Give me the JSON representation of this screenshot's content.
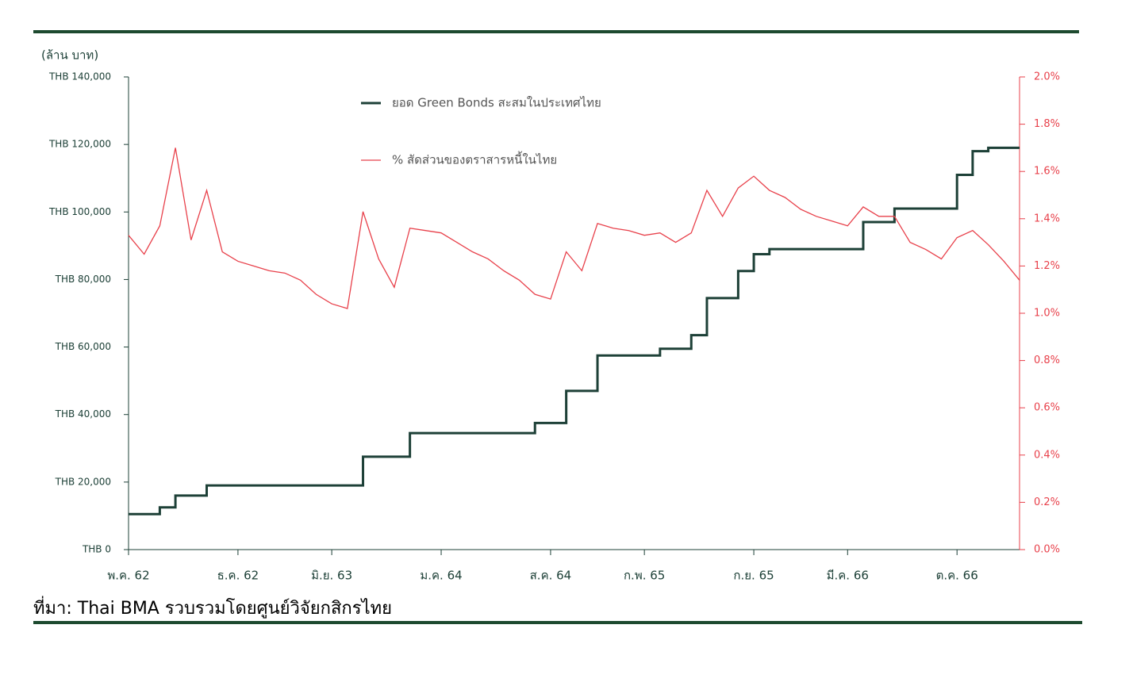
{
  "chart_data": {
    "type": "line",
    "y_axis_label": "(ล้าน บาท)",
    "source": "ที่มา: Thai BMA รวบรวมโดยศูนย์วิจัยกสิกรไทย",
    "categories": [
      "พ.ค. 62",
      null,
      null,
      null,
      null,
      null,
      null,
      "ธ.ค. 62",
      null,
      null,
      null,
      null,
      null,
      "มิ.ย. 63",
      null,
      null,
      null,
      null,
      null,
      null,
      "ม.ค. 64",
      null,
      null,
      null,
      null,
      null,
      null,
      "ส.ค. 64",
      null,
      null,
      null,
      null,
      null,
      "ก.พ. 65",
      null,
      null,
      null,
      null,
      null,
      null,
      "ก.ย. 65",
      null,
      null,
      null,
      null,
      null,
      "มี.ค. 66",
      null,
      null,
      null,
      null,
      null,
      null,
      "ต.ค. 66",
      null,
      null,
      null,
      null
    ],
    "series": [
      {
        "name": "ยอด Green Bonds สะสมในประเทศไทย",
        "color": "#1d4037",
        "axis": "y",
        "values": [
          10500,
          10500,
          12500,
          16000,
          16000,
          19000,
          19000,
          19000,
          19000,
          19000,
          19000,
          19000,
          19000,
          19000,
          19000,
          27500,
          27500,
          27500,
          34500,
          34500,
          34500,
          34500,
          34500,
          34500,
          34500,
          34500,
          37500,
          37500,
          47000,
          47000,
          57500,
          57500,
          57500,
          57500,
          59500,
          59500,
          63500,
          74500,
          74500,
          82500,
          87500,
          89000,
          89000,
          89000,
          89000,
          89000,
          89000,
          97000,
          97000,
          101000,
          101000,
          101000,
          101000,
          111000,
          118000,
          119000,
          119000,
          119000
        ]
      },
      {
        "name": "% สัดส่วนของตราสารหนี้ในไทย",
        "color": "#e8414b",
        "axis": "y2",
        "values": [
          1.33,
          1.25,
          1.37,
          1.7,
          1.31,
          1.52,
          1.26,
          1.22,
          1.2,
          1.18,
          1.17,
          1.14,
          1.08,
          1.04,
          1.02,
          1.43,
          1.23,
          1.11,
          1.36,
          1.35,
          1.34,
          1.3,
          1.26,
          1.23,
          1.18,
          1.14,
          1.08,
          1.06,
          1.26,
          1.18,
          1.38,
          1.36,
          1.35,
          1.33,
          1.34,
          1.3,
          1.34,
          1.52,
          1.41,
          1.53,
          1.58,
          1.52,
          1.49,
          1.44,
          1.41,
          1.39,
          1.37,
          1.45,
          1.41,
          1.41,
          1.3,
          1.27,
          1.23,
          1.32,
          1.35,
          1.29,
          1.22,
          1.14
        ]
      }
    ],
    "ylim": [
      0,
      140000
    ],
    "yticks": [
      {
        "value": 0,
        "label": "THB 0"
      },
      {
        "value": 20000,
        "label": "THB 20,000"
      },
      {
        "value": 40000,
        "label": "THB 40,000"
      },
      {
        "value": 60000,
        "label": "THB 60,000"
      },
      {
        "value": 80000,
        "label": "THB 80,000"
      },
      {
        "value": 100000,
        "label": "THB 100,000"
      },
      {
        "value": 120000,
        "label": "THB 120,000"
      },
      {
        "value": 140000,
        "label": "THB 140,000"
      }
    ],
    "y2lim": [
      0,
      2.0
    ],
    "y2ticks": [
      {
        "value": 0,
        "label": "0.0%"
      },
      {
        "value": 0.2,
        "label": "0.2%"
      },
      {
        "value": 0.4,
        "label": "0.4%"
      },
      {
        "value": 0.6,
        "label": "0.6%"
      },
      {
        "value": 0.8,
        "label": "0.8%"
      },
      {
        "value": 1.0,
        "label": "1.0%"
      },
      {
        "value": 1.2,
        "label": "1.2%"
      },
      {
        "value": 1.4,
        "label": "1.4%"
      },
      {
        "value": 1.6,
        "label": "1.6%"
      },
      {
        "value": 1.8,
        "label": "1.8%"
      },
      {
        "value": 2.0,
        "label": "2.0%"
      }
    ],
    "y2_color": "#e8414b",
    "grid": false
  }
}
